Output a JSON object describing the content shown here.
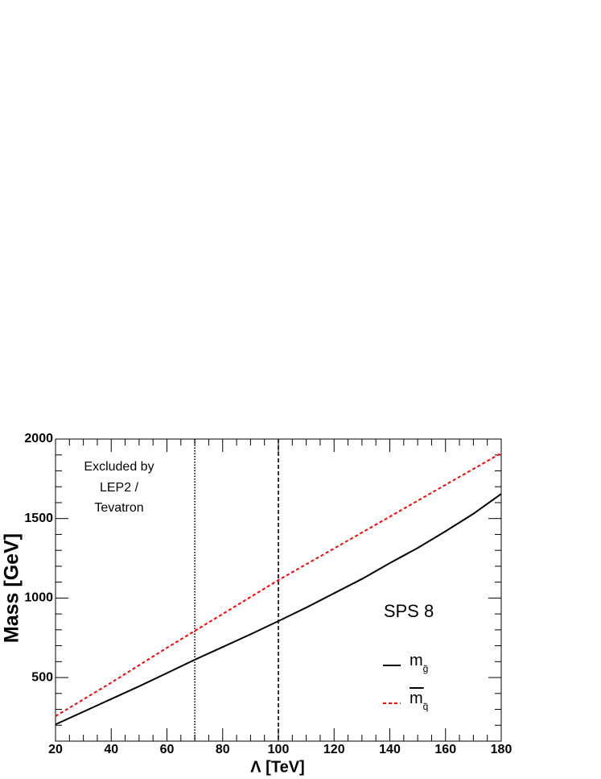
{
  "chart_data": {
    "type": "line",
    "xlabel": "Λ  [TeV]",
    "ylabel": "Mass [GeV]",
    "xlim": [
      20,
      180
    ],
    "ylim": [
      100,
      2000
    ],
    "xticks": [
      20,
      40,
      60,
      80,
      100,
      120,
      140,
      160,
      180
    ],
    "yticks": [
      500,
      1000,
      1500,
      2000
    ],
    "xminorticks": [
      25,
      30,
      35,
      45,
      50,
      55,
      65,
      70,
      75,
      85,
      90,
      95,
      105,
      110,
      115,
      125,
      130,
      135,
      145,
      150,
      155,
      165,
      170,
      175
    ],
    "yminorticks": [
      100,
      200,
      300,
      400,
      600,
      700,
      800,
      900,
      1100,
      1200,
      1300,
      1400,
      1600,
      1700,
      1800,
      1900
    ],
    "series": [
      {
        "name": "m",
        "subscript": "g̃",
        "overline": false,
        "color": "#000000",
        "dash": "none",
        "x": [
          20,
          30,
          40,
          50,
          60,
          70,
          80,
          90,
          100,
          110,
          120,
          130,
          140,
          150,
          160,
          170,
          180
        ],
        "values": [
          205,
          285,
          365,
          445,
          528,
          612,
          692,
          772,
          855,
          940,
          1030,
          1120,
          1220,
          1315,
          1420,
          1530,
          1655
        ]
      },
      {
        "name": "m",
        "subscript": "q̃",
        "overline": true,
        "color": "#ff0000",
        "dash": "4,3",
        "x": [
          20,
          40,
          60,
          80,
          100,
          120,
          140,
          160,
          180
        ],
        "values": [
          257,
          468,
          687,
          900,
          1113,
          1312,
          1512,
          1712,
          1912
        ]
      }
    ],
    "vlines": [
      {
        "x": 70,
        "dash": "1.5,2"
      },
      {
        "x": 100,
        "dash": "5,3"
      }
    ],
    "annotations": [
      "Excluded by",
      "LEP2 /",
      "Tevatron",
      "SPS 8"
    ]
  }
}
